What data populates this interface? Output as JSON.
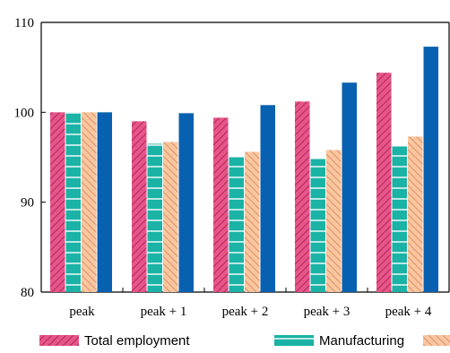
{
  "chart_data": {
    "type": "bar",
    "title": "",
    "subtitle": "",
    "categories": [
      "peak",
      "peak + 1",
      "peak + 2",
      "peak + 3",
      "peak + 4"
    ],
    "ylim": [
      80,
      110
    ],
    "yticks": [
      80,
      90,
      100,
      110
    ],
    "grid": false,
    "legend_position": "bottom",
    "series": [
      {
        "name": "Total employment",
        "values": [
          100,
          99,
          99.4,
          101.2,
          104.4
        ],
        "color": "#e8558b",
        "pattern": "diagonal-hatch"
      },
      {
        "name": "Manufacturing",
        "values": [
          100,
          96.5,
          95,
          94.8,
          96.2
        ],
        "color": "#1ab3a6",
        "pattern": "horizontal-lines"
      },
      {
        "name": "",
        "values": [
          100,
          96.7,
          95.6,
          95.8,
          97.3
        ],
        "color": "#f9c7a0",
        "pattern": "diagonal-hatch"
      },
      {
        "name": "",
        "values": [
          100,
          99.9,
          100.8,
          103.3,
          107.3
        ],
        "color": "#0860b0",
        "pattern": "solid"
      }
    ]
  }
}
